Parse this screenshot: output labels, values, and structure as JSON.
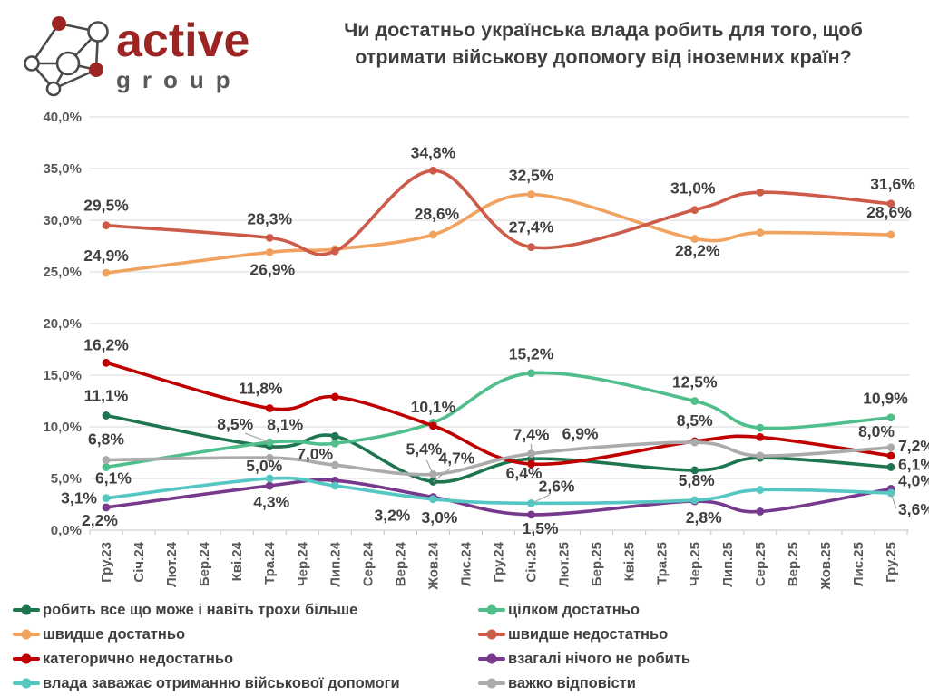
{
  "header": {
    "logo_brand": "active",
    "logo_sub": "group",
    "title_line1": "Чи достатньо українська влада робить для того, щоб",
    "title_line2": "отримати військову допомогу від іноземних країн?"
  },
  "chart_data": {
    "type": "line",
    "title": "Чи достатньо українська влада робить для того, щоб отримати військову допомогу від іноземних країн?",
    "xlabel": "",
    "ylabel": "",
    "ylim": [
      0,
      40
    ],
    "y_tick_step": 5,
    "y_tick_labels": [
      "0,0%",
      "5,0%",
      "10,0%",
      "15,0%",
      "20,0%",
      "25,0%",
      "30,0%",
      "35,0%",
      "40,0%"
    ],
    "grid": true,
    "legend_position": "bottom",
    "x_categories": [
      "Гру.23",
      "Січ.24",
      "Лют.24",
      "Бер.24",
      "Кві.24",
      "Тра.24",
      "Чер.24",
      "Лип.24",
      "Сер.24",
      "Вер.24",
      "Жов.24",
      "Лис.24",
      "Гру.24",
      "Січ.25",
      "Лют.25",
      "Бер.25",
      "Кві.25",
      "Тра.25",
      "Чер.25",
      "Лип.25",
      "Сер.25",
      "Вер.25",
      "Жов.25",
      "Лис.25",
      "Гру.25"
    ],
    "survey_wave_month_indices": [
      0,
      5,
      7,
      10,
      13,
      18,
      20,
      24
    ],
    "series": [
      {
        "name": "робить все що може і навіть трохи більше",
        "color": "#1e7550",
        "values": [
          11.1,
          8.1,
          9.1,
          4.7,
          6.9,
          5.8,
          7.0,
          6.1
        ],
        "labels": [
          {
            "w": 0,
            "t": "11,1%",
            "dx": 0,
            "dy": -16
          },
          {
            "w": 1,
            "t": "8,1%",
            "dx": 17,
            "dy": -18
          },
          {
            "w": 3,
            "t": "4,7%",
            "dx": 26,
            "dy": -20,
            "leader": true
          },
          {
            "w": 4,
            "t": "6,9%",
            "dx": 54,
            "dy": -22
          },
          {
            "w": 5,
            "t": "5,8%",
            "dx": 2,
            "dy": 17
          },
          {
            "w": 7,
            "t": "6,1%",
            "dx": 8,
            "dy": 3,
            "a": "start"
          }
        ]
      },
      {
        "name": "цілком достатньо",
        "color": "#4fbe8b",
        "values": [
          6.1,
          8.5,
          8.4,
          10.4,
          15.2,
          12.5,
          9.9,
          10.9
        ],
        "labels": [
          {
            "w": 0,
            "t": "6,1%",
            "dx": 8,
            "dy": 18
          },
          {
            "w": 1,
            "t": "8,5%",
            "dx": -38,
            "dy": -14,
            "leader": true
          },
          {
            "w": 4,
            "t": "15,2%",
            "dx": 0,
            "dy": -15
          },
          {
            "w": 5,
            "t": "12,5%",
            "dx": 0,
            "dy": -15
          },
          {
            "w": 7,
            "t": "10,9%",
            "dx": -6,
            "dy": -15
          }
        ]
      },
      {
        "name": "швидше достатньо",
        "color": "#f1a25e",
        "values": [
          24.9,
          26.9,
          27.2,
          28.6,
          32.5,
          28.2,
          28.8,
          28.6
        ],
        "labels": [
          {
            "w": 0,
            "t": "24,9%",
            "dx": 0,
            "dy": -13
          },
          {
            "w": 1,
            "t": "26,9%",
            "dx": 3,
            "dy": 25
          },
          {
            "w": 3,
            "t": "28,6%",
            "dx": 4,
            "dy": -17
          },
          {
            "w": 4,
            "t": "32,5%",
            "dx": 0,
            "dy": -15
          },
          {
            "w": 5,
            "t": "28,2%",
            "dx": 3,
            "dy": 19
          },
          {
            "w": 7,
            "t": "28,6%",
            "dx": -2,
            "dy": -19
          }
        ]
      },
      {
        "name": "швидше недостатньо",
        "color": "#cd5b4a",
        "values": [
          29.5,
          28.3,
          27.0,
          34.8,
          27.4,
          31.0,
          32.7,
          31.6
        ],
        "labels": [
          {
            "w": 0,
            "t": "29,5%",
            "dx": 0,
            "dy": -16
          },
          {
            "w": 1,
            "t": "28,3%",
            "dx": 0,
            "dy": -15
          },
          {
            "w": 3,
            "t": "34,8%",
            "dx": 0,
            "dy": -14
          },
          {
            "w": 4,
            "t": "27,4%",
            "dx": 0,
            "dy": -16
          },
          {
            "w": 5,
            "t": "31,0%",
            "dx": -2,
            "dy": -18
          },
          {
            "w": 7,
            "t": "31,6%",
            "dx": 2,
            "dy": -16
          }
        ]
      },
      {
        "name": "категорично недостатньо",
        "color": "#c00000",
        "values": [
          16.2,
          11.8,
          12.9,
          10.1,
          6.4,
          8.6,
          9.0,
          7.2
        ],
        "labels": [
          {
            "w": 0,
            "t": "16,2%",
            "dx": 0,
            "dy": -14
          },
          {
            "w": 1,
            "t": "11,8%",
            "dx": -10,
            "dy": -16
          },
          {
            "w": 3,
            "t": "10,1%",
            "dx": 0,
            "dy": -15
          },
          {
            "w": 4,
            "t": "6,4%",
            "dx": -8,
            "dy": 16
          },
          {
            "w": 7,
            "t": "7,2%",
            "dx": 8,
            "dy": -5,
            "a": "start"
          }
        ]
      },
      {
        "name": "взагалі нічого не робить",
        "color": "#76398c",
        "values": [
          2.2,
          4.3,
          4.8,
          3.2,
          1.5,
          2.8,
          1.8,
          4.0
        ],
        "labels": [
          {
            "w": 0,
            "t": "2,2%",
            "dx": -7,
            "dy": 20
          },
          {
            "w": 1,
            "t": "4,3%",
            "dx": 2,
            "dy": 24
          },
          {
            "w": 3,
            "t": "3,2%",
            "dx": -45,
            "dy": 26
          },
          {
            "w": 4,
            "t": "1,5%",
            "dx": 10,
            "dy": 21
          },
          {
            "w": 5,
            "t": "2,8%",
            "dx": 10,
            "dy": 24
          },
          {
            "w": 7,
            "t": "4,0%",
            "dx": 8,
            "dy": -3,
            "a": "start"
          }
        ]
      },
      {
        "name": "влада заважає отриманню військової допомоги",
        "color": "#54c7c3",
        "values": [
          3.1,
          5.0,
          4.3,
          3.0,
          2.6,
          2.9,
          3.9,
          3.6
        ],
        "labels": [
          {
            "w": 0,
            "t": "3,1%",
            "dx": -10,
            "dy": 6,
            "a": "end"
          },
          {
            "w": 1,
            "t": "5,0%",
            "dx": -6,
            "dy": -8
          },
          {
            "w": 3,
            "t": "3,0%",
            "dx": 7,
            "dy": 26
          },
          {
            "w": 4,
            "t": "2,6%",
            "dx": 28,
            "dy": -13,
            "leader": true
          },
          {
            "w": 7,
            "t": "3,6%",
            "dx": 8,
            "dy": 24,
            "a": "start",
            "leader": true
          }
        ]
      },
      {
        "name": "важко відповісти",
        "color": "#ababab",
        "values": [
          6.8,
          7.0,
          6.3,
          5.4,
          7.4,
          8.5,
          7.2,
          8.0
        ],
        "labels": [
          {
            "w": 0,
            "t": "6,8%",
            "dx": 0,
            "dy": -17
          },
          {
            "w": 1,
            "t": "7,0%",
            "dx": 30,
            "dy": 2,
            "a": "start",
            "leader": true
          },
          {
            "w": 3,
            "t": "5,4%",
            "dx": -10,
            "dy": -22,
            "leader": true
          },
          {
            "w": 4,
            "t": "7,4%",
            "dx": 0,
            "dy": -15,
            "leader": true
          },
          {
            "w": 5,
            "t": "8,5%",
            "dx": 0,
            "dy": -18
          },
          {
            "w": 7,
            "t": "8,0%",
            "dx": -16,
            "dy": -12
          }
        ]
      }
    ]
  },
  "legend": {
    "columns": [
      [
        0,
        2,
        4,
        6
      ],
      [
        1,
        3,
        5,
        7
      ]
    ]
  }
}
